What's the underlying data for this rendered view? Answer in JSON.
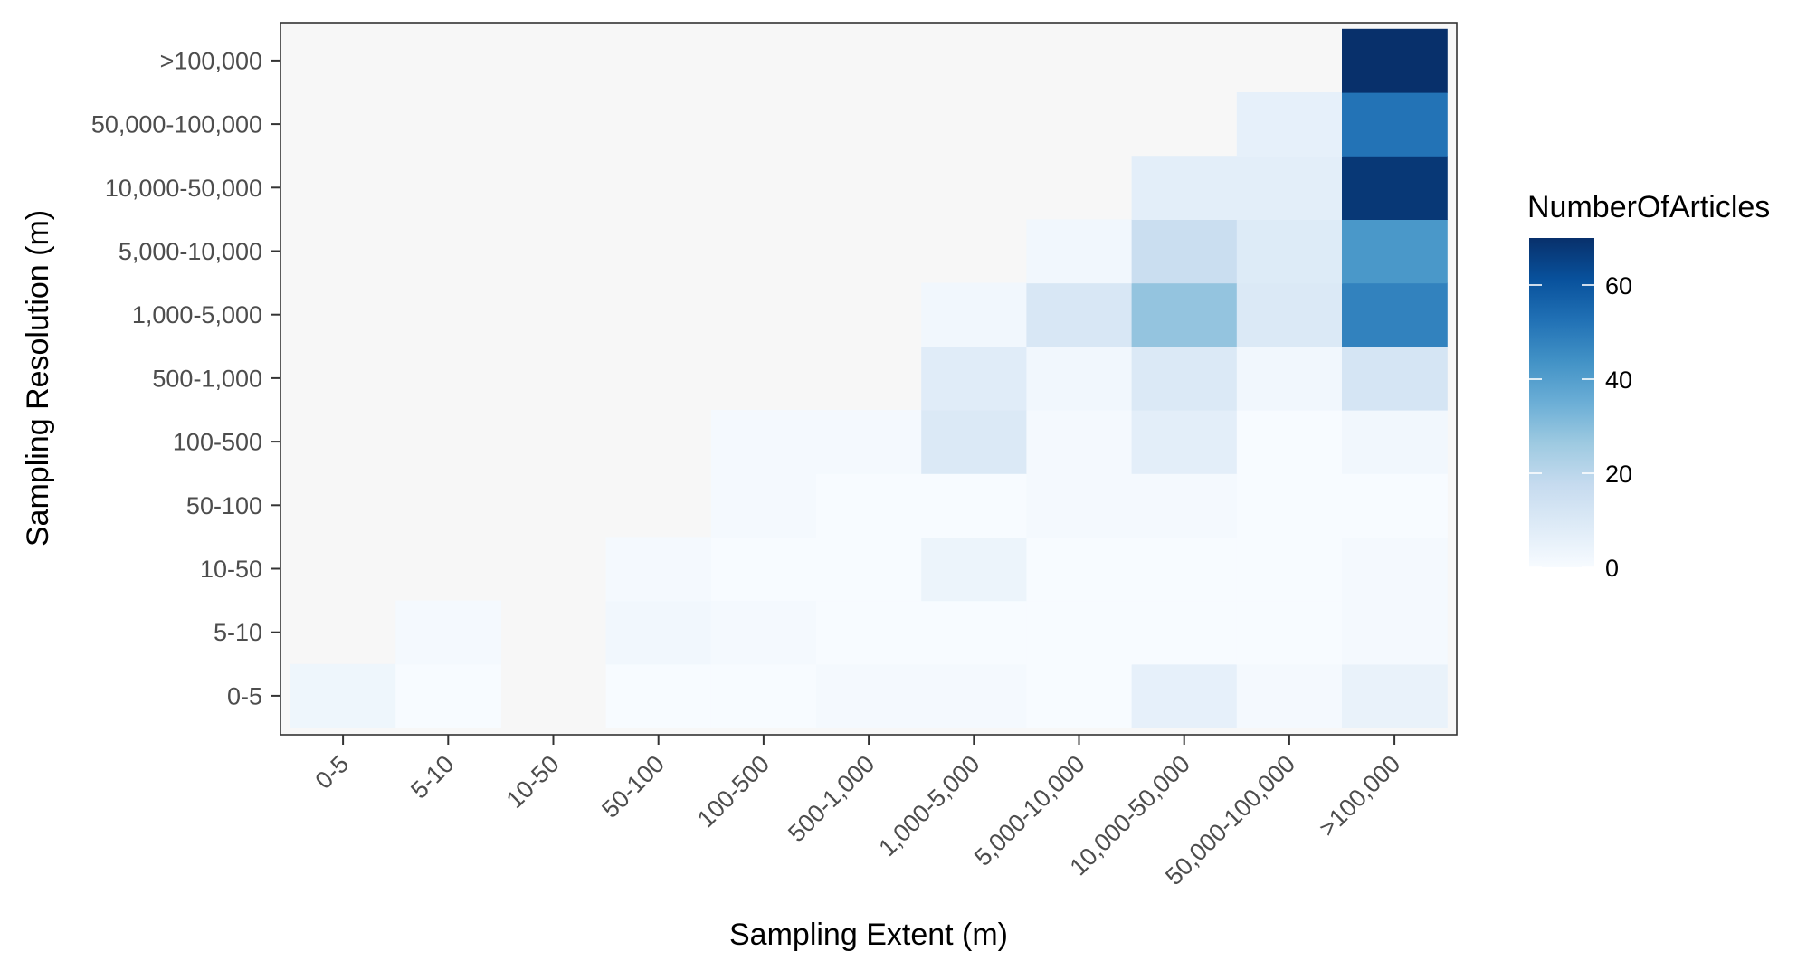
{
  "chart_data": {
    "type": "heatmap",
    "xlabel": "Sampling Extent (m)",
    "ylabel": "Sampling Resolution (m)",
    "x_categories": [
      "0-5",
      "5-10",
      "10-50",
      "50-100",
      "100-500",
      "500-1,000",
      "1,000-5,000",
      "5,000-10,000",
      "10,000-50,000",
      "50,000-100,000",
      ">100,000"
    ],
    "y_categories": [
      "0-5",
      "5-10",
      "10-50",
      "50-100",
      "100-500",
      "500-1,000",
      "1,000-5,000",
      "5,000-10,000",
      "10,000-50,000",
      "50,000-100,000",
      ">100,000"
    ],
    "values": [
      [
        3,
        0,
        null,
        0,
        0,
        1,
        1,
        0,
        6,
        1,
        5
      ],
      [
        null,
        1,
        null,
        2,
        1,
        0,
        0,
        0,
        0,
        0,
        1
      ],
      [
        null,
        null,
        null,
        1,
        0,
        0,
        4,
        0,
        0,
        0,
        1
      ],
      [
        null,
        null,
        null,
        null,
        1,
        0,
        0,
        1,
        1,
        0,
        0
      ],
      [
        null,
        null,
        null,
        null,
        1,
        1,
        10,
        1,
        7,
        0,
        2
      ],
      [
        null,
        null,
        null,
        null,
        null,
        null,
        8,
        2,
        10,
        2,
        12
      ],
      [
        null,
        null,
        null,
        null,
        null,
        null,
        2,
        11,
        28,
        10,
        48
      ],
      [
        null,
        null,
        null,
        null,
        null,
        null,
        null,
        2,
        16,
        9,
        42
      ],
      [
        null,
        null,
        null,
        null,
        null,
        null,
        null,
        null,
        7,
        7,
        68
      ],
      [
        null,
        null,
        null,
        null,
        null,
        null,
        null,
        null,
        null,
        6,
        52
      ],
      [
        null,
        null,
        null,
        null,
        null,
        null,
        null,
        null,
        null,
        null,
        72
      ]
    ],
    "legend": {
      "title": "NumberOfArticles",
      "ticks": [
        "0",
        "20",
        "40",
        "60"
      ],
      "tick_values": [
        0,
        20,
        40,
        60
      ],
      "min": 0,
      "max": 70,
      "placement": "right"
    },
    "colors": {
      "low": "#f7fbff",
      "high": "#08306b",
      "scale_stops": [
        "#f7fbff",
        "#deebf7",
        "#c6dbef",
        "#9ecae1",
        "#6baed6",
        "#4292c6",
        "#2171b5",
        "#08519c",
        "#08306b"
      ],
      "na": "#f7f7f7",
      "panel_border": "#333333"
    },
    "grid": false
  }
}
